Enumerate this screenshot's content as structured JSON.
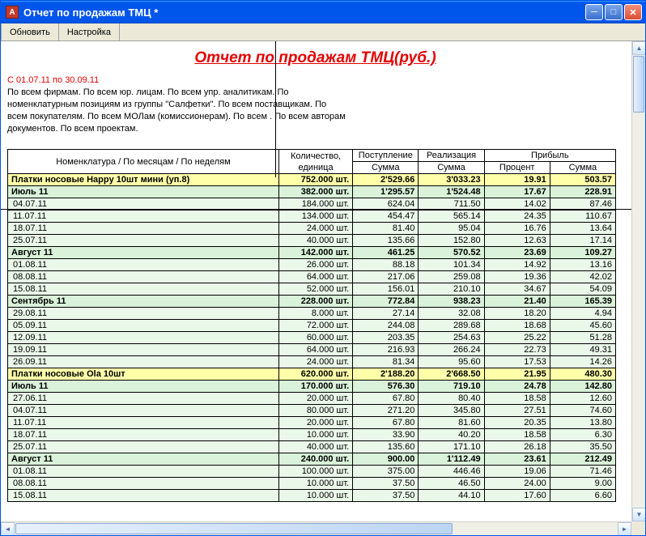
{
  "window": {
    "title": "Отчет по продажам ТМЦ  *"
  },
  "toolbar": {
    "refresh": "Обновить",
    "settings": "Настройка"
  },
  "report": {
    "title": "Отчет по продажам ТМЦ(руб.)",
    "date_range": "С 01.07.11 по 30.09.11",
    "filters": "По всем фирмам. По всем юр. лицам. По всем упр. аналитикам. По номенклатурным позициям из группы \"Салфетки\". По всем поставщикам. По всем покупателям. По всем МОЛам (комиссионерам). По всем . По всем авторам документов. По всем проектам."
  },
  "headers": {
    "name": "Номенклатура / По месяцам / По неделям",
    "qty_top": "Количество,",
    "qty_bot": "единица",
    "in": "Поступление",
    "in_sum": "Сумма",
    "out": "Реализация",
    "out_sum": "Сумма",
    "profit": "Прибыль",
    "profit_pct": "Процент",
    "profit_sum": "Сумма"
  },
  "rows": [
    {
      "lvl": 1,
      "name": "Платки носовые Happy 10шт мини (уп.8)",
      "qty": "752.000 шт.",
      "in": "2'529.66",
      "out": "3'033.23",
      "pct": "19.91",
      "sum": "503.57"
    },
    {
      "lvl": 2,
      "name": "Июль 11",
      "qty": "382.000 шт.",
      "in": "1'295.57",
      "out": "1'524.48",
      "pct": "17.67",
      "sum": "228.91"
    },
    {
      "lvl": 3,
      "name": "04.07.11",
      "qty": "184.000 шт.",
      "in": "624.04",
      "out": "711.50",
      "pct": "14.02",
      "sum": "87.46"
    },
    {
      "lvl": 3,
      "name": "11.07.11",
      "qty": "134.000 шт.",
      "in": "454.47",
      "out": "565.14",
      "pct": "24.35",
      "sum": "110.67"
    },
    {
      "lvl": 3,
      "name": "18.07.11",
      "qty": "24.000 шт.",
      "in": "81.40",
      "out": "95.04",
      "pct": "16.76",
      "sum": "13.64"
    },
    {
      "lvl": 3,
      "name": "25.07.11",
      "qty": "40.000 шт.",
      "in": "135.66",
      "out": "152.80",
      "pct": "12.63",
      "sum": "17.14"
    },
    {
      "lvl": 2,
      "name": "Август 11",
      "qty": "142.000 шт.",
      "in": "461.25",
      "out": "570.52",
      "pct": "23.69",
      "sum": "109.27"
    },
    {
      "lvl": 3,
      "name": "01.08.11",
      "qty": "26.000 шт.",
      "in": "88.18",
      "out": "101.34",
      "pct": "14.92",
      "sum": "13.16"
    },
    {
      "lvl": 3,
      "name": "08.08.11",
      "qty": "64.000 шт.",
      "in": "217.06",
      "out": "259.08",
      "pct": "19.36",
      "sum": "42.02"
    },
    {
      "lvl": 3,
      "name": "15.08.11",
      "qty": "52.000 шт.",
      "in": "156.01",
      "out": "210.10",
      "pct": "34.67",
      "sum": "54.09"
    },
    {
      "lvl": 2,
      "name": "Сентябрь 11",
      "qty": "228.000 шт.",
      "in": "772.84",
      "out": "938.23",
      "pct": "21.40",
      "sum": "165.39"
    },
    {
      "lvl": 3,
      "name": "29.08.11",
      "qty": "8.000 шт.",
      "in": "27.14",
      "out": "32.08",
      "pct": "18.20",
      "sum": "4.94"
    },
    {
      "lvl": 3,
      "name": "05.09.11",
      "qty": "72.000 шт.",
      "in": "244.08",
      "out": "289.68",
      "pct": "18.68",
      "sum": "45.60"
    },
    {
      "lvl": 3,
      "name": "12.09.11",
      "qty": "60.000 шт.",
      "in": "203.35",
      "out": "254.63",
      "pct": "25.22",
      "sum": "51.28"
    },
    {
      "lvl": 3,
      "name": "19.09.11",
      "qty": "64.000 шт.",
      "in": "216.93",
      "out": "266.24",
      "pct": "22.73",
      "sum": "49.31"
    },
    {
      "lvl": 3,
      "name": "26.09.11",
      "qty": "24.000 шт.",
      "in": "81.34",
      "out": "95.60",
      "pct": "17.53",
      "sum": "14.26"
    },
    {
      "lvl": 1,
      "name": "Платки носовые Ola 10шт",
      "qty": "620.000 шт.",
      "in": "2'188.20",
      "out": "2'668.50",
      "pct": "21.95",
      "sum": "480.30"
    },
    {
      "lvl": 2,
      "name": "Июль 11",
      "qty": "170.000 шт.",
      "in": "576.30",
      "out": "719.10",
      "pct": "24.78",
      "sum": "142.80"
    },
    {
      "lvl": 3,
      "name": "27.06.11",
      "qty": "20.000 шт.",
      "in": "67.80",
      "out": "80.40",
      "pct": "18.58",
      "sum": "12.60"
    },
    {
      "lvl": 3,
      "name": "04.07.11",
      "qty": "80.000 шт.",
      "in": "271.20",
      "out": "345.80",
      "pct": "27.51",
      "sum": "74.60"
    },
    {
      "lvl": 3,
      "name": "11.07.11",
      "qty": "20.000 шт.",
      "in": "67.80",
      "out": "81.60",
      "pct": "20.35",
      "sum": "13.80"
    },
    {
      "lvl": 3,
      "name": "18.07.11",
      "qty": "10.000 шт.",
      "in": "33.90",
      "out": "40.20",
      "pct": "18.58",
      "sum": "6.30"
    },
    {
      "lvl": 3,
      "name": "25.07.11",
      "qty": "40.000 шт.",
      "in": "135.60",
      "out": "171.10",
      "pct": "26.18",
      "sum": "35.50"
    },
    {
      "lvl": 2,
      "name": "Август 11",
      "qty": "240.000 шт.",
      "in": "900.00",
      "out": "1'112.49",
      "pct": "23.61",
      "sum": "212.49"
    },
    {
      "lvl": 3,
      "name": "01.08.11",
      "qty": "100.000 шт.",
      "in": "375.00",
      "out": "446.46",
      "pct": "19.06",
      "sum": "71.46"
    },
    {
      "lvl": 3,
      "name": "08.08.11",
      "qty": "10.000 шт.",
      "in": "37.50",
      "out": "46.50",
      "pct": "24.00",
      "sum": "9.00"
    },
    {
      "lvl": 3,
      "name": "15.08.11",
      "qty": "10.000 шт.",
      "in": "37.50",
      "out": "44.10",
      "pct": "17.60",
      "sum": "6.60"
    }
  ]
}
